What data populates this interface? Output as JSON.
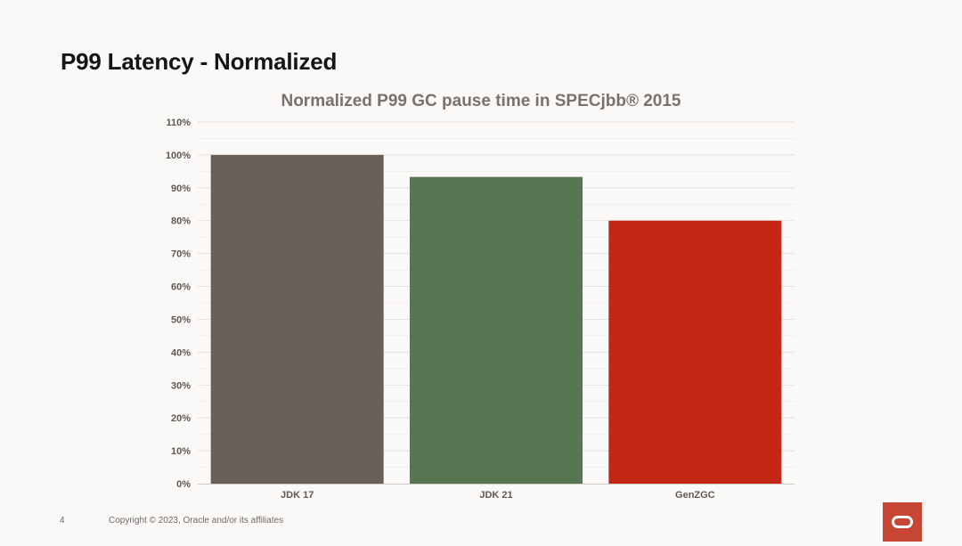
{
  "slide": {
    "title": "P99 Latency - Normalized",
    "page_number": "4",
    "copyright": "Copyright © 2023, Oracle and/or its affiliates",
    "logo_icon": "oracle-logo-icon"
  },
  "colors": {
    "background": "#fbf9f8",
    "jdk17": "#6a605a",
    "jdk21": "#567752",
    "genzgc": "#c42714",
    "title_text": "#161513",
    "chart_title_text": "#7a716b",
    "tick_text": "#5f5852",
    "grid": "#e3dfdc",
    "logo": "#c74634"
  },
  "chart_data": {
    "type": "bar",
    "title": "Normalized P99 GC pause time in SPECjbb® 2015",
    "xlabel": "",
    "ylabel": "",
    "categories": [
      "JDK 17",
      "JDK 21",
      "GenZGC"
    ],
    "values": [
      100,
      93.3,
      80
    ],
    "ylim": [
      0,
      110
    ],
    "ytick_labels": [
      "0%",
      "10%",
      "20%",
      "30%",
      "40%",
      "50%",
      "60%",
      "70%",
      "80%",
      "90%",
      "100%",
      "110%"
    ],
    "grid": true,
    "legend": "none"
  }
}
